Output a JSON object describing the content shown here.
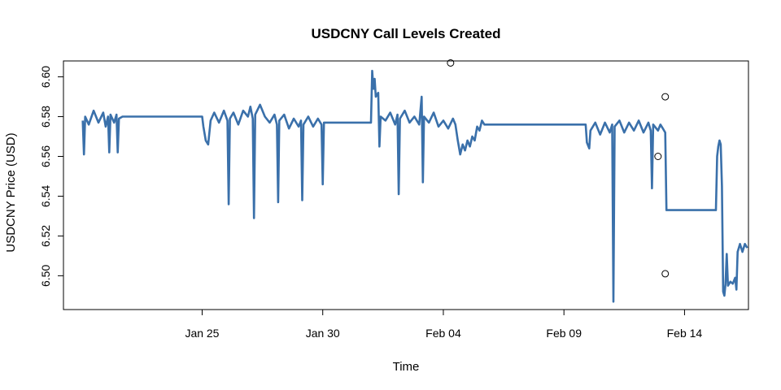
{
  "chart_data": {
    "type": "line",
    "title": "USDCNY Call Levels Created",
    "xlabel": "Time",
    "ylabel": "USDCNY Price (USD)",
    "x_unit": "day",
    "x_ticks": [
      {
        "x": 24.0,
        "label": "Jan 25"
      },
      {
        "x": 29.0,
        "label": "Jan 30"
      },
      {
        "x": 34.0,
        "label": "Feb 04"
      },
      {
        "x": 39.0,
        "label": "Feb 09"
      },
      {
        "x": 44.0,
        "label": "Feb 14"
      }
    ],
    "xlim": [
      18.25,
      46.65
    ],
    "y_ticks": [
      6.5,
      6.52,
      6.54,
      6.56,
      6.58,
      6.6
    ],
    "y_tick_labels": [
      "6.50",
      "6.52",
      "6.54",
      "6.56",
      "6.58",
      "6.60"
    ],
    "ylim": [
      6.483,
      6.608
    ],
    "line_color": "#3A70AA",
    "series": [
      {
        "values": [
          [
            19.05,
            6.578
          ],
          [
            19.1,
            6.561
          ],
          [
            19.15,
            6.58
          ],
          [
            19.3,
            6.576
          ],
          [
            19.5,
            6.583
          ],
          [
            19.7,
            6.577
          ],
          [
            19.9,
            6.582
          ],
          [
            20.0,
            6.575
          ],
          [
            20.1,
            6.58
          ],
          [
            20.15,
            6.562
          ],
          [
            20.2,
            6.581
          ],
          [
            20.35,
            6.577
          ],
          [
            20.45,
            6.581
          ],
          [
            20.5,
            6.562
          ],
          [
            20.55,
            6.579
          ],
          [
            20.7,
            6.58
          ],
          [
            24.0,
            6.58
          ],
          [
            24.05,
            6.575
          ],
          [
            24.15,
            6.568
          ],
          [
            24.25,
            6.566
          ],
          [
            24.35,
            6.578
          ],
          [
            24.5,
            6.582
          ],
          [
            24.7,
            6.577
          ],
          [
            24.9,
            6.583
          ],
          [
            25.05,
            6.578
          ],
          [
            25.1,
            6.536
          ],
          [
            25.15,
            6.579
          ],
          [
            25.3,
            6.582
          ],
          [
            25.5,
            6.576
          ],
          [
            25.7,
            6.583
          ],
          [
            25.9,
            6.58
          ],
          [
            26.0,
            6.585
          ],
          [
            26.1,
            6.579
          ],
          [
            26.15,
            6.529
          ],
          [
            26.2,
            6.581
          ],
          [
            26.4,
            6.586
          ],
          [
            26.6,
            6.58
          ],
          [
            26.8,
            6.577
          ],
          [
            27.0,
            6.581
          ],
          [
            27.1,
            6.576
          ],
          [
            27.15,
            6.537
          ],
          [
            27.2,
            6.578
          ],
          [
            27.4,
            6.581
          ],
          [
            27.6,
            6.574
          ],
          [
            27.8,
            6.579
          ],
          [
            28.0,
            6.575
          ],
          [
            28.1,
            6.578
          ],
          [
            28.15,
            6.538
          ],
          [
            28.2,
            6.576
          ],
          [
            28.4,
            6.58
          ],
          [
            28.6,
            6.575
          ],
          [
            28.8,
            6.579
          ],
          [
            28.95,
            6.576
          ],
          [
            29.0,
            6.546
          ],
          [
            29.05,
            6.577
          ],
          [
            31.0,
            6.577
          ],
          [
            31.05,
            6.603
          ],
          [
            31.1,
            6.594
          ],
          [
            31.15,
            6.599
          ],
          [
            31.2,
            6.59
          ],
          [
            31.3,
            6.592
          ],
          [
            31.35,
            6.565
          ],
          [
            31.4,
            6.58
          ],
          [
            31.6,
            6.578
          ],
          [
            31.8,
            6.582
          ],
          [
            32.0,
            6.576
          ],
          [
            32.1,
            6.581
          ],
          [
            32.15,
            6.541
          ],
          [
            32.2,
            6.579
          ],
          [
            32.4,
            6.583
          ],
          [
            32.6,
            6.577
          ],
          [
            32.8,
            6.58
          ],
          [
            33.0,
            6.576
          ],
          [
            33.1,
            6.59
          ],
          [
            33.15,
            6.547
          ],
          [
            33.2,
            6.58
          ],
          [
            33.4,
            6.577
          ],
          [
            33.6,
            6.582
          ],
          [
            33.8,
            6.575
          ],
          [
            34.0,
            6.578
          ],
          [
            34.2,
            6.574
          ],
          [
            34.4,
            6.579
          ],
          [
            34.5,
            6.576
          ],
          [
            34.6,
            6.568
          ],
          [
            34.7,
            6.561
          ],
          [
            34.8,
            6.566
          ],
          [
            34.9,
            6.563
          ],
          [
            35.0,
            6.568
          ],
          [
            35.1,
            6.565
          ],
          [
            35.2,
            6.57
          ],
          [
            35.3,
            6.568
          ],
          [
            35.4,
            6.575
          ],
          [
            35.5,
            6.573
          ],
          [
            35.6,
            6.578
          ],
          [
            35.7,
            6.576
          ],
          [
            39.9,
            6.576
          ],
          [
            39.95,
            6.567
          ],
          [
            40.05,
            6.564
          ],
          [
            40.1,
            6.573
          ],
          [
            40.3,
            6.577
          ],
          [
            40.5,
            6.571
          ],
          [
            40.7,
            6.577
          ],
          [
            40.9,
            6.572
          ],
          [
            41.0,
            6.576
          ],
          [
            41.05,
            6.487
          ],
          [
            41.1,
            6.575
          ],
          [
            41.3,
            6.578
          ],
          [
            41.5,
            6.572
          ],
          [
            41.7,
            6.577
          ],
          [
            41.9,
            6.573
          ],
          [
            42.1,
            6.578
          ],
          [
            42.3,
            6.572
          ],
          [
            42.5,
            6.577
          ],
          [
            42.6,
            6.573
          ],
          [
            42.65,
            6.544
          ],
          [
            42.7,
            6.576
          ],
          [
            42.9,
            6.573
          ],
          [
            43.0,
            6.576
          ],
          [
            43.1,
            6.574
          ],
          [
            43.2,
            6.572
          ],
          [
            43.25,
            6.533
          ],
          [
            45.3,
            6.533
          ],
          [
            45.35,
            6.56
          ],
          [
            45.4,
            6.565
          ],
          [
            45.45,
            6.568
          ],
          [
            45.5,
            6.566
          ],
          [
            45.55,
            6.545
          ],
          [
            45.6,
            6.492
          ],
          [
            45.65,
            6.49
          ],
          [
            45.7,
            6.496
          ],
          [
            45.75,
            6.511
          ],
          [
            45.8,
            6.495
          ],
          [
            45.9,
            6.497
          ],
          [
            46.0,
            6.496
          ],
          [
            46.1,
            6.499
          ],
          [
            46.15,
            6.493
          ],
          [
            46.2,
            6.512
          ],
          [
            46.3,
            6.516
          ],
          [
            46.4,
            6.512
          ],
          [
            46.5,
            6.516
          ],
          [
            46.6,
            6.514
          ]
        ]
      }
    ],
    "points": [
      {
        "x": 34.3,
        "y": 6.607
      },
      {
        "x": 42.9,
        "y": 6.56
      },
      {
        "x": 43.2,
        "y": 6.59
      },
      {
        "x": 43.2,
        "y": 6.501
      }
    ]
  }
}
